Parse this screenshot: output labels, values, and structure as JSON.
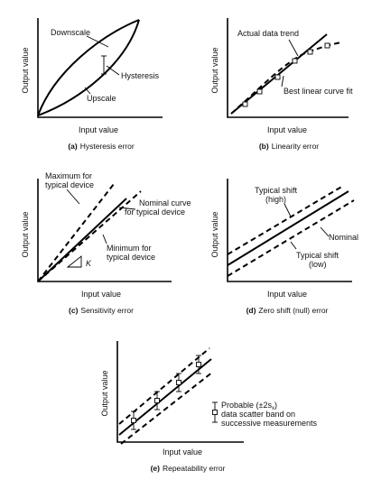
{
  "panels": {
    "a": {
      "caption_letter": "(a)",
      "caption_text": "Hysteresis error",
      "x_label": "Input value",
      "y_label": "Output value",
      "labels": {
        "downscale": "Downscale",
        "hysteresis": "Hysteresis",
        "upscale": "Upscale"
      }
    },
    "b": {
      "caption_letter": "(b)",
      "caption_text": "Linearity error",
      "x_label": "Input value",
      "y_label": "Output value",
      "labels": {
        "actual": "Actual data trend",
        "best": "Best linear curve fit"
      }
    },
    "c": {
      "caption_letter": "(c)",
      "caption_text": "Sensitivity error",
      "x_label": "Input value",
      "y_label": "Output value",
      "labels": {
        "max_line1": "Maximum for",
        "max_line2": "typical device",
        "nominal_line1": "Nominal curve",
        "nominal_line2": "for typical device",
        "min_line1": "Minimum for",
        "min_line2": "typical device",
        "slope": "K"
      }
    },
    "d": {
      "caption_letter": "(d)",
      "caption_text": "Zero shift (null) error",
      "x_label": "Input value",
      "y_label": "Output value",
      "labels": {
        "high_line1": "Typical shift",
        "high_line2": "(high)",
        "nominal": "Nominal",
        "low_line1": "Typical shift",
        "low_line2": "(low)"
      }
    },
    "e": {
      "caption_letter": "(e)",
      "caption_text": "Repeatability error",
      "x_label": "Input value",
      "y_label": "Output value",
      "labels": {
        "probable_prefix": "Probable (±2s",
        "probable_sub": "x",
        "probable_suffix": ")",
        "line2": "data scatter band on",
        "line3": "successive measurements"
      }
    }
  }
}
